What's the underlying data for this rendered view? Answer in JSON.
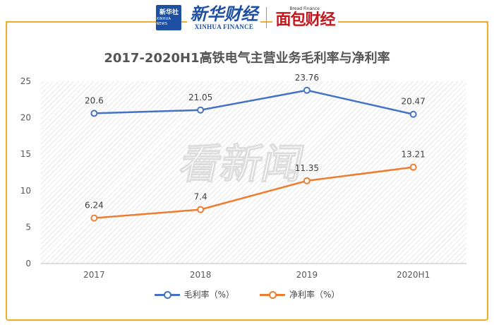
{
  "brand": {
    "xinhua_box_label": "新华社",
    "xinhua_box_sub": "XINHUA NEWS",
    "xinhua_finance_cn": "新华财经",
    "xinhua_finance_en": "XINHUA FINANCE",
    "miannbao_tagline": "Bread Finance",
    "miannbao_label": "面包财经",
    "watermark": "看新闻"
  },
  "colors": {
    "frame": "#f0ad2a",
    "series_gross": "#4472c4",
    "series_net": "#ed7d31"
  },
  "chart_data": {
    "type": "line",
    "title": "2017-2020H1高铁电气主营业务毛利率与净利率",
    "categories": [
      "2017",
      "2018",
      "2019",
      "2020H1"
    ],
    "ylim": [
      0,
      25
    ],
    "yticks": [
      0,
      5,
      10,
      15,
      20,
      25
    ],
    "grid": true,
    "legend_position": "bottom",
    "series": [
      {
        "name": "毛利率（%）",
        "values": [
          20.6,
          21.05,
          23.76,
          20.47
        ],
        "labels": [
          "20.6",
          "21.05",
          "23.76",
          "20.47"
        ]
      },
      {
        "name": "净利率（%）",
        "values": [
          6.24,
          7.4,
          11.35,
          13.21
        ],
        "labels": [
          "6.24",
          "7.4",
          "11.35",
          "13.21"
        ]
      }
    ]
  }
}
